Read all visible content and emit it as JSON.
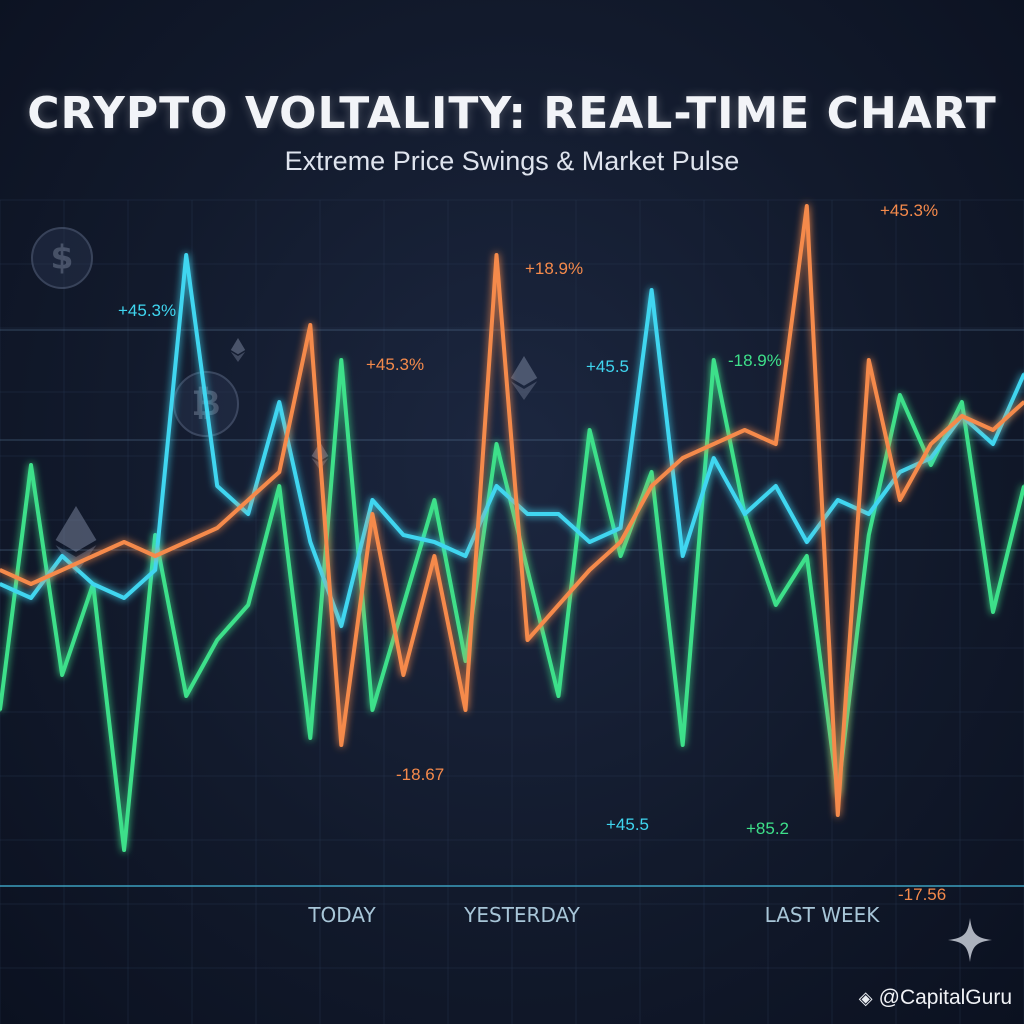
{
  "header": {
    "title": "CRYPTO VOLTALITY: REAL-TIME CHART",
    "subtitle": "Extreme Price Swings & Market Pulse"
  },
  "watermark": {
    "text": "@CapitalGuru",
    "icon": "binance-diamond-icon"
  },
  "colors": {
    "background": "#121a2c",
    "green": "#3ee08a",
    "cyan": "#3fd6f0",
    "orange": "#f58a4b",
    "grid": "#2a3a55"
  },
  "chart_data": {
    "type": "line",
    "x_labels": [
      "TODAY",
      "YESTERDAY",
      "LAST WEEK"
    ],
    "ylim": [
      -30,
      60
    ],
    "grid": true,
    "series": [
      {
        "color": "green",
        "values": [
          -10,
          25,
          -5,
          8,
          -30,
          15,
          -8,
          0,
          5,
          22,
          -14,
          40,
          -10,
          5,
          20,
          -3,
          28,
          10,
          -8,
          30,
          12,
          24,
          -15,
          40,
          18,
          5,
          12,
          -22,
          15,
          35,
          25,
          34,
          4,
          22
        ]
      },
      {
        "color": "cyan",
        "values": [
          8,
          6,
          12,
          8,
          6,
          10,
          55,
          22,
          18,
          34,
          14,
          2,
          20,
          15,
          14,
          12,
          22,
          18,
          18,
          14,
          16,
          50,
          12,
          26,
          18,
          22,
          14,
          20,
          18,
          24,
          26,
          32,
          28,
          38
        ]
      },
      {
        "color": "orange",
        "values": [
          10,
          8,
          10,
          12,
          14,
          12,
          14,
          16,
          20,
          24,
          45,
          -15,
          18,
          -5,
          12,
          -10,
          55,
          0,
          5,
          10,
          14,
          22,
          26,
          28,
          30,
          28,
          62,
          -25,
          40,
          20,
          28,
          32,
          30,
          34
        ]
      }
    ],
    "annotations": [
      {
        "text": "+45.3%",
        "color": "cyan"
      },
      {
        "text": "+18.9%",
        "color": "orange"
      },
      {
        "text": "+45.3%",
        "color": "orange"
      },
      {
        "text": "+45.5",
        "color": "cyan"
      },
      {
        "text": "-18.9%",
        "color": "green"
      },
      {
        "text": "+45.3%",
        "color": "orange"
      },
      {
        "text": "-18.67",
        "color": "orange"
      },
      {
        "text": "+45.5",
        "color": "cyan"
      },
      {
        "text": "+85.2",
        "color": "green"
      },
      {
        "text": "-17.56",
        "color": "orange"
      }
    ]
  }
}
